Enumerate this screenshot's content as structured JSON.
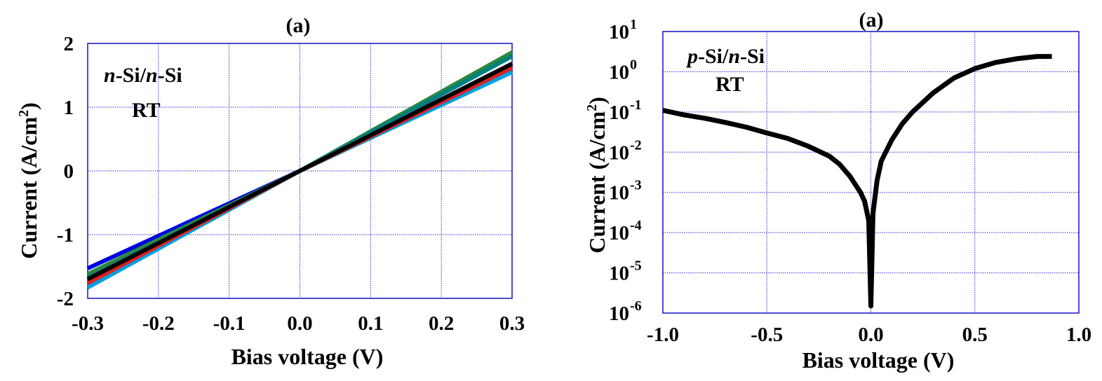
{
  "chart_data": [
    {
      "type": "line",
      "title": "(a)",
      "xlabel": "Bias voltage (V)",
      "ylabel": "Current (A/cm",
      "ylabel_sup": "2",
      "ylabel_close": ")",
      "xlim": [
        -0.3,
        0.3
      ],
      "ylim": [
        -2,
        2
      ],
      "xticks": [
        -0.3,
        -0.2,
        -0.1,
        0.0,
        0.1,
        0.2,
        0.3
      ],
      "xtick_labels": [
        "-0.3",
        "-0.2",
        "-0.1",
        "0.0",
        "0.1",
        "0.2",
        "0.3"
      ],
      "yticks": [
        2,
        1,
        0,
        -1,
        -2
      ],
      "ytick_labels": [
        "2",
        "1",
        "0",
        "-1",
        "-2"
      ],
      "grid": true,
      "annotation": {
        "line1_parts": [
          "n",
          "-Si/",
          "n",
          "-Si"
        ],
        "line2": "RT"
      },
      "series": [
        {
          "color": "#0000e0",
          "x": [
            -0.3,
            0.0,
            0.3
          ],
          "y": [
            -1.53,
            0.0,
            1.68
          ]
        },
        {
          "color": "#00a0e0",
          "x": [
            -0.3,
            0.0,
            0.3
          ],
          "y": [
            -1.83,
            0.0,
            1.55
          ]
        },
        {
          "color": "#2a8a3a",
          "x": [
            -0.3,
            0.0,
            0.3
          ],
          "y": [
            -1.62,
            0.0,
            1.86
          ]
        },
        {
          "color": "#e02020",
          "x": [
            -0.3,
            0.0,
            0.3
          ],
          "y": [
            -1.76,
            0.0,
            1.62
          ]
        },
        {
          "color": "#008080",
          "x": [
            -0.3,
            0.0,
            0.3
          ],
          "y": [
            -1.68,
            0.0,
            1.8
          ]
        },
        {
          "color": "#000000",
          "x": [
            -0.3,
            0.0,
            0.3
          ],
          "y": [
            -1.7,
            0.0,
            1.68
          ]
        }
      ]
    },
    {
      "type": "line",
      "title": "(a)",
      "xlabel": "Bias voltage (V)",
      "ylabel": "Current (A/cm",
      "ylabel_sup": "2",
      "ylabel_close": ")",
      "xlim": [
        -1.0,
        1.0
      ],
      "ylim_exponent": [
        -6,
        1
      ],
      "y_scale": "log",
      "xticks": [
        -1.0,
        -0.5,
        0.0,
        0.5,
        1.0
      ],
      "xtick_labels": [
        "-1.0",
        "-0.5",
        "0.0",
        "0.5",
        "1.0"
      ],
      "ytick_exponents": [
        1,
        0,
        -1,
        -2,
        -3,
        -4,
        -5,
        -6
      ],
      "ytick_base": "10",
      "grid": true,
      "annotation": {
        "line1_parts": [
          "p",
          "-Si/",
          "n",
          "-Si"
        ],
        "line2": "RT"
      },
      "series": [
        {
          "color": "#000000",
          "x": [
            -1.0,
            -0.9,
            -0.8,
            -0.7,
            -0.6,
            -0.5,
            -0.4,
            -0.3,
            -0.2,
            -0.15,
            -0.1,
            -0.05,
            -0.03,
            -0.01,
            0.0,
            0.01,
            0.03,
            0.05,
            0.1,
            0.15,
            0.2,
            0.3,
            0.4,
            0.5,
            0.6,
            0.7,
            0.8,
            0.87
          ],
          "y": [
            0.11,
            0.085,
            0.07,
            0.055,
            0.042,
            0.03,
            0.022,
            0.014,
            0.008,
            0.005,
            0.0025,
            0.001,
            0.0006,
            0.0002,
            1.5e-06,
            0.0003,
            0.002,
            0.006,
            0.02,
            0.05,
            0.1,
            0.3,
            0.7,
            1.2,
            1.7,
            2.1,
            2.4,
            2.4
          ]
        }
      ]
    }
  ]
}
